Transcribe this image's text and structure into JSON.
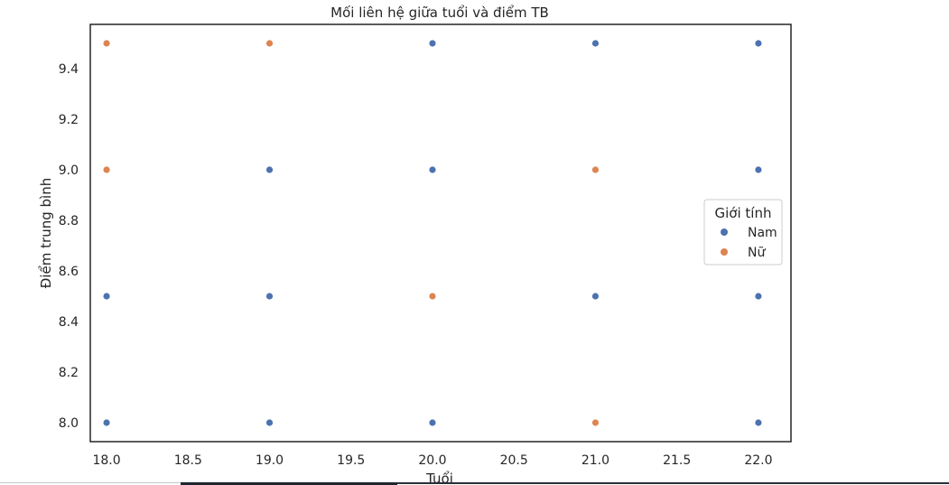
{
  "chart_data": {
    "type": "scatter",
    "title": "Mối liên hệ giữa tuổi và điểm TB",
    "xlabel": "Tuổi",
    "ylabel": "Điểm trung bình",
    "xlim": [
      17.9,
      22.2
    ],
    "ylim": [
      7.925,
      9.575
    ],
    "xticks": [
      "18.0",
      "18.5",
      "19.0",
      "19.5",
      "20.0",
      "20.5",
      "21.0",
      "21.5",
      "22.0"
    ],
    "yticks": [
      "8.0",
      "8.2",
      "8.4",
      "8.6",
      "8.8",
      "9.0",
      "9.2",
      "9.4"
    ],
    "grid": false,
    "legend": {
      "title": "Giới tính",
      "placement": "center-right"
    },
    "series": [
      {
        "name": "Nam",
        "color": "#4c72b0",
        "points": [
          [
            18.0,
            8.0
          ],
          [
            18.0,
            8.5
          ],
          [
            19.0,
            8.0
          ],
          [
            19.0,
            8.5
          ],
          [
            19.0,
            9.0
          ],
          [
            20.0,
            8.0
          ],
          [
            20.0,
            9.0
          ],
          [
            20.0,
            9.5
          ],
          [
            21.0,
            8.5
          ],
          [
            21.0,
            9.5
          ],
          [
            22.0,
            8.0
          ],
          [
            22.0,
            8.5
          ],
          [
            22.0,
            9.0
          ],
          [
            22.0,
            9.5
          ]
        ]
      },
      {
        "name": "Nữ",
        "color": "#dd8452",
        "points": [
          [
            18.0,
            9.0
          ],
          [
            18.0,
            9.5
          ],
          [
            19.0,
            9.5
          ],
          [
            20.0,
            8.5
          ],
          [
            21.0,
            8.0
          ],
          [
            21.0,
            9.0
          ]
        ]
      }
    ]
  }
}
